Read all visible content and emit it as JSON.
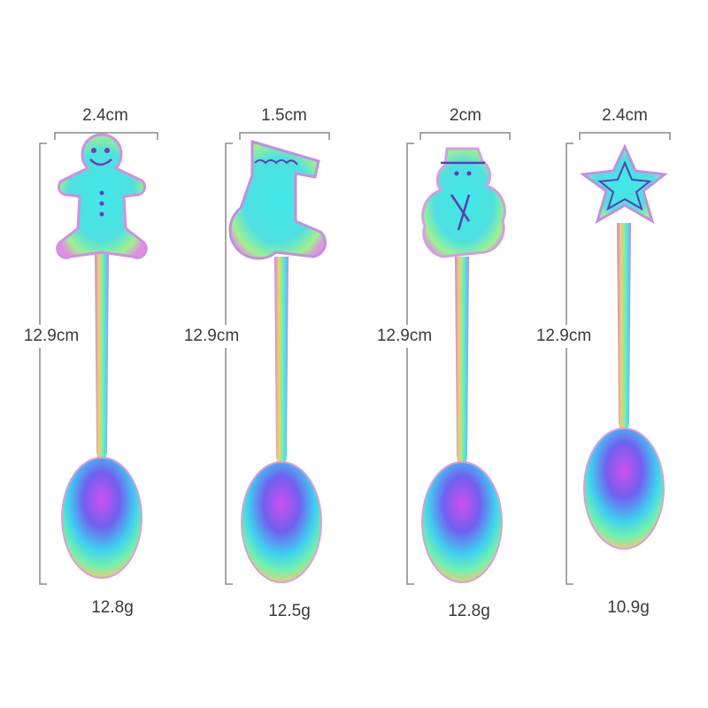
{
  "spoons": [
    {
      "topper": "gingerbread-man",
      "width": "2.4cm",
      "length": "12.9cm",
      "weight": "12.8g"
    },
    {
      "topper": "christmas-stocking",
      "width": "1.5cm",
      "length": "12.9cm",
      "weight": "12.5g"
    },
    {
      "topper": "snowman",
      "width": "2cm",
      "length": "12.9cm",
      "weight": "12.8g"
    },
    {
      "topper": "star",
      "width": "2.4cm",
      "length": "12.9cm",
      "weight": "10.9g"
    }
  ],
  "colors": {
    "rainbow": [
      "#c86cf0",
      "#5a7cf0",
      "#3fe6e6",
      "#8ef08a",
      "#f0e070"
    ],
    "dimension_line": "#8a8a8a"
  }
}
